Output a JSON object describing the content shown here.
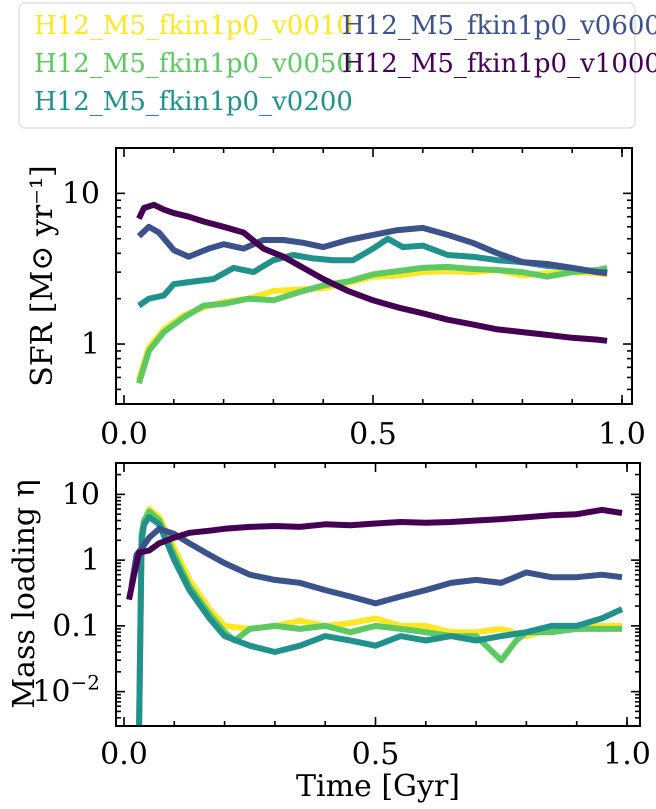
{
  "chart_data": [
    {
      "type": "line",
      "panel": "top",
      "xlabel": "",
      "ylabel": "SFR [M⊙ yr⁻¹]",
      "xlim": [
        0,
        1.0
      ],
      "ylim": [
        0.4,
        20
      ],
      "yscale": "log",
      "xticks": [
        "0.0",
        "0.5",
        "1.0"
      ],
      "yticks": [
        "1",
        "10"
      ],
      "legend_position": "top",
      "series": [
        {
          "name": "H12_M5_fkin1p0_v0010",
          "color": "#fde725",
          "x": [
            0.03,
            0.05,
            0.08,
            0.12,
            0.16,
            0.2,
            0.25,
            0.3,
            0.35,
            0.4,
            0.45,
            0.5,
            0.55,
            0.6,
            0.65,
            0.7,
            0.75,
            0.8,
            0.85,
            0.9,
            0.95,
            0.97
          ],
          "y": [
            0.58,
            0.95,
            1.25,
            1.55,
            1.75,
            1.9,
            2.0,
            2.25,
            2.3,
            2.35,
            2.55,
            2.8,
            2.85,
            3.0,
            3.05,
            3.0,
            3.1,
            2.85,
            2.95,
            3.0,
            2.95,
            2.9
          ]
        },
        {
          "name": "H12_M5_fkin1p0_v0050",
          "color": "#5ec962",
          "x": [
            0.03,
            0.05,
            0.08,
            0.12,
            0.16,
            0.2,
            0.25,
            0.3,
            0.35,
            0.4,
            0.45,
            0.5,
            0.55,
            0.6,
            0.65,
            0.7,
            0.75,
            0.8,
            0.85,
            0.9,
            0.95,
            0.97
          ],
          "y": [
            0.55,
            0.9,
            1.2,
            1.5,
            1.8,
            1.85,
            2.0,
            1.95,
            2.2,
            2.45,
            2.6,
            2.9,
            3.05,
            3.2,
            3.25,
            3.15,
            3.1,
            3.0,
            2.8,
            3.0,
            3.1,
            3.2
          ]
        },
        {
          "name": "H12_M5_fkin1p0_v0200",
          "color": "#21918c",
          "x": [
            0.03,
            0.05,
            0.08,
            0.1,
            0.14,
            0.18,
            0.22,
            0.26,
            0.3,
            0.34,
            0.38,
            0.42,
            0.46,
            0.5,
            0.53,
            0.56,
            0.6,
            0.65,
            0.7,
            0.75,
            0.8,
            0.85,
            0.9,
            0.95,
            0.97
          ],
          "y": [
            1.8,
            2.0,
            2.1,
            2.5,
            2.6,
            2.7,
            3.2,
            3.0,
            3.6,
            3.9,
            3.7,
            3.6,
            3.6,
            4.3,
            5.0,
            4.4,
            4.5,
            3.9,
            3.8,
            3.6,
            3.5,
            3.3,
            3.2,
            3.0,
            3.0
          ]
        },
        {
          "name": "H12_M5_fkin1p0_v0600",
          "color": "#3b528b",
          "x": [
            0.03,
            0.05,
            0.07,
            0.1,
            0.13,
            0.17,
            0.2,
            0.24,
            0.28,
            0.32,
            0.36,
            0.4,
            0.45,
            0.5,
            0.55,
            0.6,
            0.65,
            0.7,
            0.75,
            0.8,
            0.85,
            0.9,
            0.95,
            0.97
          ],
          "y": [
            5.2,
            6.0,
            5.5,
            4.2,
            3.8,
            4.3,
            4.6,
            4.3,
            4.9,
            4.9,
            4.7,
            4.4,
            4.9,
            5.3,
            5.7,
            5.9,
            5.3,
            4.7,
            4.0,
            3.5,
            3.4,
            3.2,
            3.0,
            2.95
          ]
        },
        {
          "name": "H12_M5_fkin1p0_v1000",
          "color": "#440154",
          "x": [
            0.03,
            0.04,
            0.06,
            0.08,
            0.1,
            0.13,
            0.16,
            0.2,
            0.24,
            0.28,
            0.32,
            0.36,
            0.4,
            0.45,
            0.5,
            0.55,
            0.6,
            0.65,
            0.7,
            0.75,
            0.8,
            0.85,
            0.9,
            0.95,
            0.97
          ],
          "y": [
            6.8,
            8.0,
            8.4,
            7.8,
            7.4,
            7.0,
            6.5,
            6.0,
            5.5,
            4.3,
            3.8,
            3.2,
            2.7,
            2.25,
            1.95,
            1.75,
            1.6,
            1.45,
            1.35,
            1.25,
            1.2,
            1.15,
            1.1,
            1.07,
            1.05
          ]
        }
      ]
    },
    {
      "type": "line",
      "panel": "bottom",
      "xlabel": "Time [Gyr]",
      "ylabel": "Mass loading η",
      "xlim": [
        0,
        1.0
      ],
      "ylim": [
        0.003,
        30
      ],
      "yscale": "log",
      "xticks": [
        "0.0",
        "0.5",
        "1.0"
      ],
      "yticks": [
        "10⁻²",
        "0.1",
        "1",
        "10"
      ],
      "series": [
        {
          "name": "H12_M5_fkin1p0_v0010",
          "color": "#fde725",
          "x": [
            0.03,
            0.035,
            0.04,
            0.05,
            0.07,
            0.1,
            0.13,
            0.17,
            0.2,
            0.25,
            0.3,
            0.35,
            0.4,
            0.45,
            0.5,
            0.55,
            0.6,
            0.65,
            0.7,
            0.75,
            0.8,
            0.85,
            0.9,
            0.95,
            0.99
          ],
          "y": [
            0.003,
            2.0,
            3.5,
            6.0,
            4.5,
            1.5,
            0.5,
            0.18,
            0.1,
            0.09,
            0.1,
            0.12,
            0.1,
            0.11,
            0.13,
            0.1,
            0.1,
            0.08,
            0.08,
            0.09,
            0.07,
            0.09,
            0.1,
            0.1,
            0.1
          ]
        },
        {
          "name": "H12_M5_fkin1p0_v0050",
          "color": "#5ec962",
          "x": [
            0.03,
            0.035,
            0.04,
            0.05,
            0.07,
            0.1,
            0.13,
            0.17,
            0.2,
            0.22,
            0.25,
            0.3,
            0.35,
            0.4,
            0.45,
            0.5,
            0.55,
            0.6,
            0.65,
            0.7,
            0.75,
            0.78,
            0.8,
            0.85,
            0.9,
            0.95,
            0.99
          ],
          "y": [
            0.003,
            2.5,
            4.0,
            5.5,
            4.0,
            1.2,
            0.4,
            0.15,
            0.08,
            0.06,
            0.09,
            0.1,
            0.09,
            0.1,
            0.08,
            0.1,
            0.09,
            0.08,
            0.07,
            0.07,
            0.03,
            0.06,
            0.08,
            0.08,
            0.09,
            0.09,
            0.09
          ]
        },
        {
          "name": "H12_M5_fkin1p0_v0200",
          "color": "#21918c",
          "x": [
            0.03,
            0.035,
            0.04,
            0.05,
            0.07,
            0.1,
            0.13,
            0.17,
            0.2,
            0.25,
            0.3,
            0.35,
            0.4,
            0.45,
            0.5,
            0.55,
            0.6,
            0.65,
            0.7,
            0.75,
            0.8,
            0.85,
            0.9,
            0.95,
            0.99
          ],
          "y": [
            0.003,
            2.0,
            3.5,
            4.5,
            3.5,
            1.0,
            0.35,
            0.13,
            0.07,
            0.05,
            0.04,
            0.05,
            0.07,
            0.06,
            0.05,
            0.07,
            0.06,
            0.07,
            0.06,
            0.07,
            0.08,
            0.1,
            0.1,
            0.13,
            0.18
          ]
        },
        {
          "name": "H12_M5_fkin1p0_v0600",
          "color": "#3b528b",
          "x": [
            0.015,
            0.025,
            0.035,
            0.05,
            0.07,
            0.1,
            0.13,
            0.17,
            0.2,
            0.25,
            0.3,
            0.35,
            0.4,
            0.45,
            0.5,
            0.55,
            0.6,
            0.65,
            0.7,
            0.75,
            0.8,
            0.85,
            0.9,
            0.95,
            0.99
          ],
          "y": [
            0.4,
            1.2,
            1.5,
            2.2,
            3.0,
            2.5,
            1.8,
            1.2,
            0.9,
            0.6,
            0.5,
            0.45,
            0.35,
            0.28,
            0.22,
            0.28,
            0.35,
            0.45,
            0.5,
            0.45,
            0.65,
            0.55,
            0.55,
            0.6,
            0.55
          ]
        },
        {
          "name": "H12_M5_fkin1p0_v1000",
          "color": "#440154",
          "x": [
            0.01,
            0.02,
            0.03,
            0.05,
            0.07,
            0.1,
            0.13,
            0.17,
            0.2,
            0.25,
            0.3,
            0.35,
            0.4,
            0.45,
            0.5,
            0.55,
            0.6,
            0.65,
            0.7,
            0.75,
            0.8,
            0.85,
            0.9,
            0.95,
            0.99
          ],
          "y": [
            0.25,
            0.6,
            1.3,
            1.4,
            1.8,
            2.2,
            2.6,
            2.8,
            3.0,
            3.2,
            3.3,
            3.2,
            3.5,
            3.4,
            3.6,
            3.8,
            3.7,
            3.8,
            4.0,
            4.2,
            4.5,
            4.8,
            5.0,
            5.8,
            5.2
          ]
        }
      ]
    }
  ]
}
